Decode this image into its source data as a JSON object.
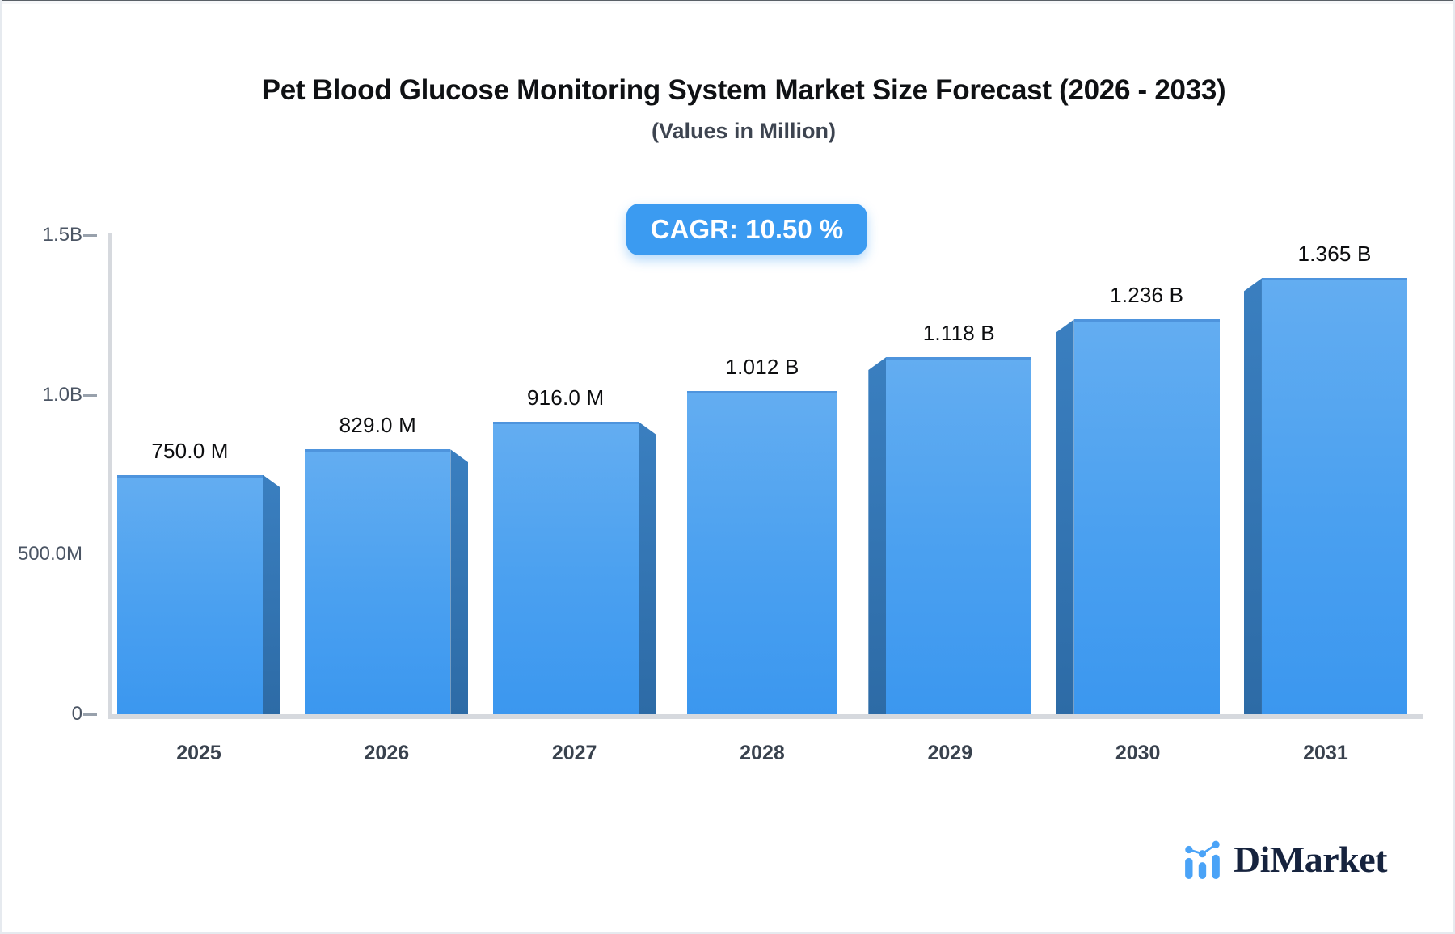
{
  "header": {
    "title": "Pet Blood Glucose Monitoring System Market Size Forecast (2026 - 2033)",
    "subtitle": "(Values in Million)",
    "cagr_label": "CAGR: 10.50 %"
  },
  "chart_data": {
    "type": "bar",
    "title": "Pet Blood Glucose Monitoring System Market Size Forecast (2026 - 2033)",
    "subtitle": "(Values in Million)",
    "cagr_percent": "10.50%",
    "categories": [
      "2025",
      "2026",
      "2027",
      "2028",
      "2029",
      "2030",
      "2031"
    ],
    "values_millions": [
      750.0,
      829.0,
      916.0,
      1012,
      1118,
      1236,
      1365
    ],
    "bar_labels": [
      "750.0 M",
      "829.0 M",
      "916.0 M",
      "1.012 B",
      "1.118 B",
      "1.236 B",
      "1.365 B"
    ],
    "xlabel": "",
    "ylabel": "",
    "y_axis": {
      "tick_labels": [
        "1.5B",
        "1.0B",
        "500.0M",
        "0"
      ],
      "tick_values_millions": [
        1500,
        1000,
        500,
        0
      ],
      "tick_dashes": [
        true,
        true,
        false,
        true
      ],
      "range_millions": [
        0,
        1500
      ]
    },
    "grid": false,
    "legend": false,
    "bar_style": "3d-bevel",
    "colors": {
      "bar_face_top": "#63adf1",
      "bar_face_bottom": "#3b97ef",
      "bar_side": "#2f71b0",
      "axis": "#d6d9de",
      "tick_dash": "#98a1ac",
      "value_label": "#0c0d0f",
      "axis_label": "#4b5564",
      "badge_bg": "#3b9bf1",
      "badge_text": "#ffffff"
    }
  },
  "watermark": {
    "brand": "DiMarket",
    "icon": "dimarket-logo-icon"
  }
}
